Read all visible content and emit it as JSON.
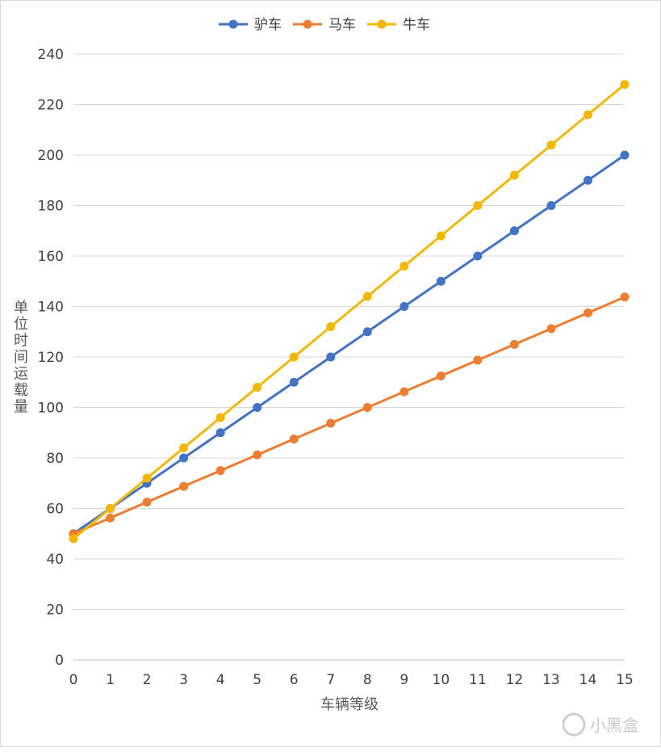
{
  "chart_data": {
    "type": "line",
    "title": "",
    "xlabel": "车辆等级",
    "ylabel": "单位时间运载量",
    "x": [
      0,
      1,
      2,
      3,
      4,
      5,
      6,
      7,
      8,
      9,
      10,
      11,
      12,
      13,
      14,
      15
    ],
    "xticks": [
      "0",
      "1",
      "2",
      "3",
      "4",
      "5",
      "6",
      "7",
      "8",
      "9",
      "10",
      "11",
      "12",
      "13",
      "14",
      "15"
    ],
    "ylim": [
      0,
      240
    ],
    "yticks": [
      0,
      20,
      40,
      60,
      80,
      100,
      120,
      140,
      160,
      180,
      200,
      220,
      240
    ],
    "grid": "horizontal",
    "legend_position": "top",
    "series": [
      {
        "name": "驴车",
        "color": "#4472C4",
        "values": [
          50,
          60,
          70,
          80,
          90,
          100,
          110,
          120,
          130,
          140,
          150,
          160,
          170,
          180,
          190,
          200
        ]
      },
      {
        "name": "马车",
        "color": "#ED7D31",
        "values": [
          50,
          56.25,
          62.5,
          68.75,
          75,
          81.25,
          87.5,
          93.75,
          100,
          106.25,
          112.5,
          118.75,
          125,
          131.25,
          137.5,
          143.75
        ]
      },
      {
        "name": "牛车",
        "color": "#F0B800",
        "values": [
          48,
          60,
          72,
          84,
          96,
          108,
          120,
          132,
          144,
          156,
          168,
          180,
          192,
          204,
          216,
          228
        ]
      }
    ]
  },
  "watermark": {
    "text": "小黑盒"
  }
}
